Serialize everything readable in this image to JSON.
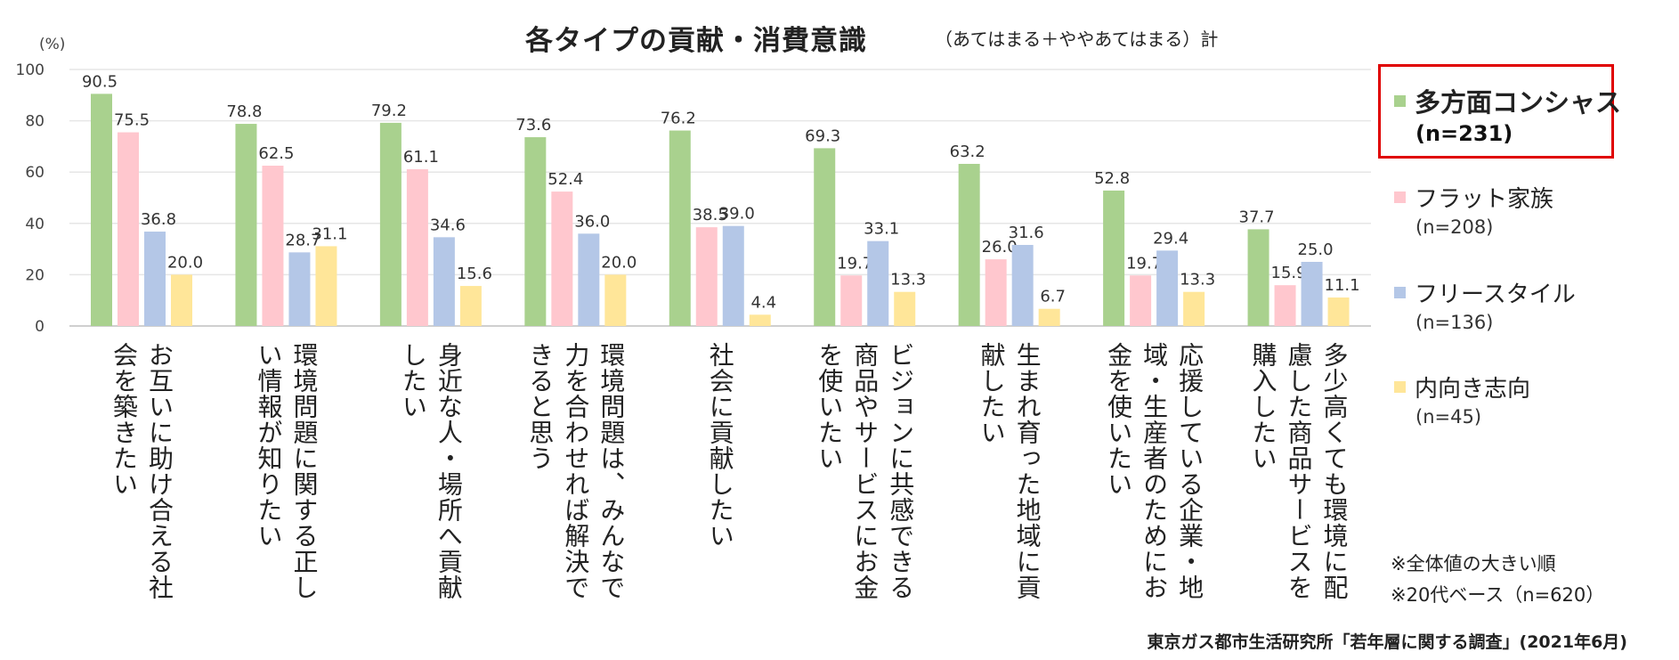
{
  "chart_data": {
    "type": "bar",
    "title": "各タイプの貢献・消費意識",
    "subtitle": "（あてはまる＋ややあてはまる）計",
    "ylabel": "(%)",
    "ylim": [
      0,
      100
    ],
    "yticks": [
      "0",
      "20",
      "40",
      "60",
      "80",
      "100"
    ],
    "categories": [
      "お互いに助け合える社会を築きたい",
      "環境問題に関する正しい情報が知りたい",
      "身近な人・場所へ貢献したい",
      "環境問題は、みんなで力を合わせれば解決できると思う",
      "社会に貢献したい",
      "ビジョンに共感できる商品やサービスにお金を使いたい",
      "生まれ育った地域に貢献したい",
      "応援している企業・地域・生産者のためにお金を使いたい",
      "多少高くても環境に配慮した商品サービスを購入したい"
    ],
    "series": [
      {
        "name": "多方面コンシャス",
        "n": "(n=231)",
        "color": "#a9d18e",
        "values": [
          90.5,
          78.8,
          79.2,
          73.6,
          76.2,
          69.3,
          63.2,
          52.8,
          37.7
        ],
        "labels": [
          "90.5",
          "78.8",
          "79.2",
          "73.6",
          "76.2",
          "69.3",
          "63.2",
          "52.8",
          "37.7"
        ]
      },
      {
        "name": "フラット家族",
        "n": "(n=208)",
        "color": "#ffc7ce",
        "values": [
          75.5,
          62.5,
          61.1,
          52.4,
          38.5,
          19.7,
          26.0,
          19.7,
          15.9
        ],
        "labels": [
          "75.5",
          "62.5",
          "61.1",
          "52.4",
          "38.5",
          "19.7",
          "26.0",
          "19.7",
          "15.9"
        ]
      },
      {
        "name": "フリースタイル",
        "n": "(n=136)",
        "color": "#b4c7e7",
        "values": [
          36.8,
          28.7,
          34.6,
          36.0,
          39.0,
          33.1,
          31.6,
          29.4,
          25.0
        ],
        "labels": [
          "36.8",
          "28.7",
          "34.6",
          "36.0",
          "39.0",
          "33.1",
          "31.6",
          "29.4",
          "25.0"
        ]
      },
      {
        "name": "内向き志向",
        "n": "(n=45)",
        "color": "#ffe699",
        "values": [
          20.0,
          31.1,
          15.6,
          20.0,
          4.4,
          13.3,
          6.7,
          13.3,
          11.1
        ],
        "labels": [
          "20.0",
          "31.1",
          "15.6",
          "20.0",
          "4.4",
          "13.3",
          "6.7",
          "13.3",
          "11.1"
        ]
      }
    ]
  },
  "notes": [
    "※全体値の大きい順",
    "※20代ベース（n=620）"
  ],
  "source": "東京ガス都市生活研究所「若年層に関する調査」(2021年6月)"
}
